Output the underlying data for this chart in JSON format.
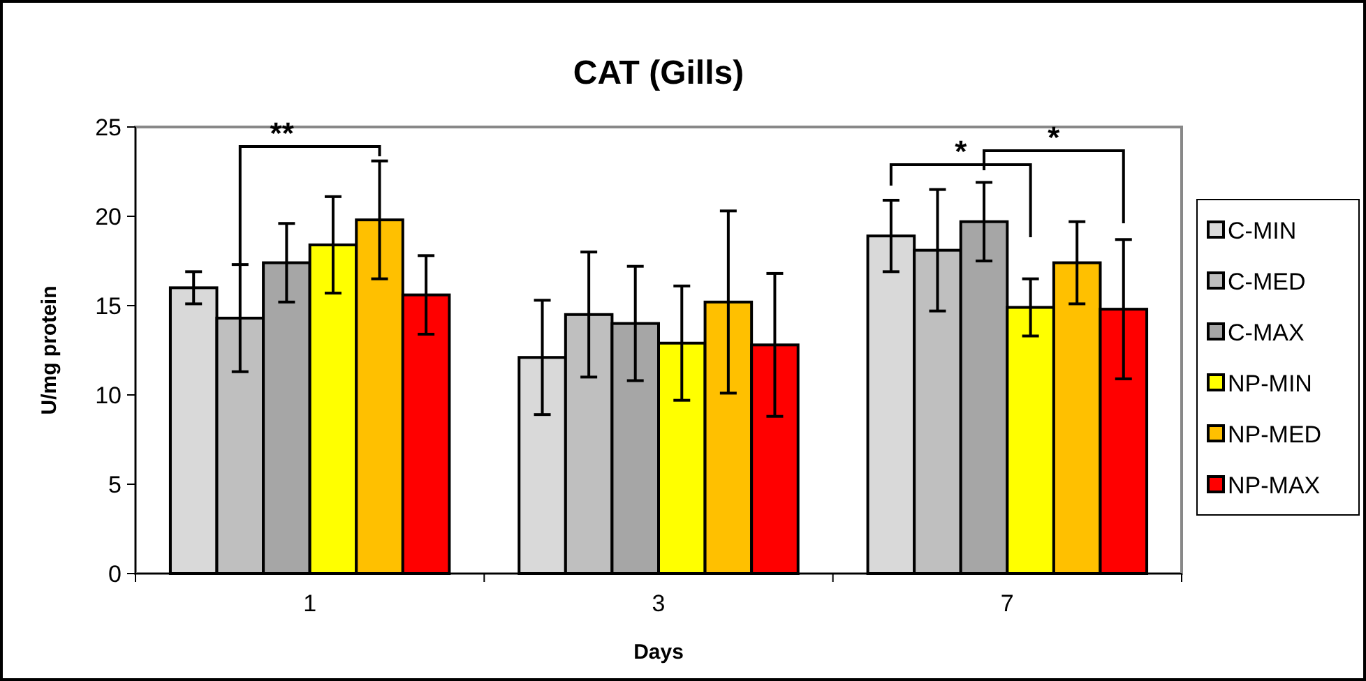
{
  "chart_data": {
    "type": "bar",
    "title": "CAT (Gills)",
    "xlabel": "Days",
    "ylabel": "U/mg protein",
    "categories": [
      "1",
      "3",
      "7"
    ],
    "series": [
      {
        "name": "C-MIN",
        "color": "#d9d9d9",
        "values": [
          16.0,
          12.1,
          18.9
        ],
        "errors": [
          0.9,
          3.2,
          2.0
        ]
      },
      {
        "name": "C-MED",
        "color": "#bfbfbf",
        "values": [
          14.3,
          14.5,
          18.1
        ],
        "errors": [
          3.0,
          3.5,
          3.4
        ]
      },
      {
        "name": "C-MAX",
        "color": "#a6a6a6",
        "values": [
          17.4,
          14.0,
          19.7
        ],
        "errors": [
          2.2,
          3.2,
          2.2
        ]
      },
      {
        "name": "NP-MIN",
        "color": "#ffff00",
        "values": [
          18.4,
          12.9,
          14.9
        ],
        "errors": [
          2.7,
          3.2,
          1.6
        ]
      },
      {
        "name": "NP-MED",
        "color": "#ffc000",
        "values": [
          19.8,
          15.2,
          17.4
        ],
        "errors": [
          3.3,
          5.1,
          2.3
        ]
      },
      {
        "name": "NP-MAX",
        "color": "#ff0000",
        "values": [
          15.6,
          12.8,
          14.8
        ],
        "errors": [
          2.2,
          4.0,
          3.9
        ]
      }
    ],
    "ylim": [
      0,
      25
    ],
    "yticks": [
      0,
      5,
      10,
      15,
      20,
      25
    ],
    "grid": false,
    "legend": "right",
    "annotations": [
      "**",
      "*",
      "*"
    ]
  }
}
